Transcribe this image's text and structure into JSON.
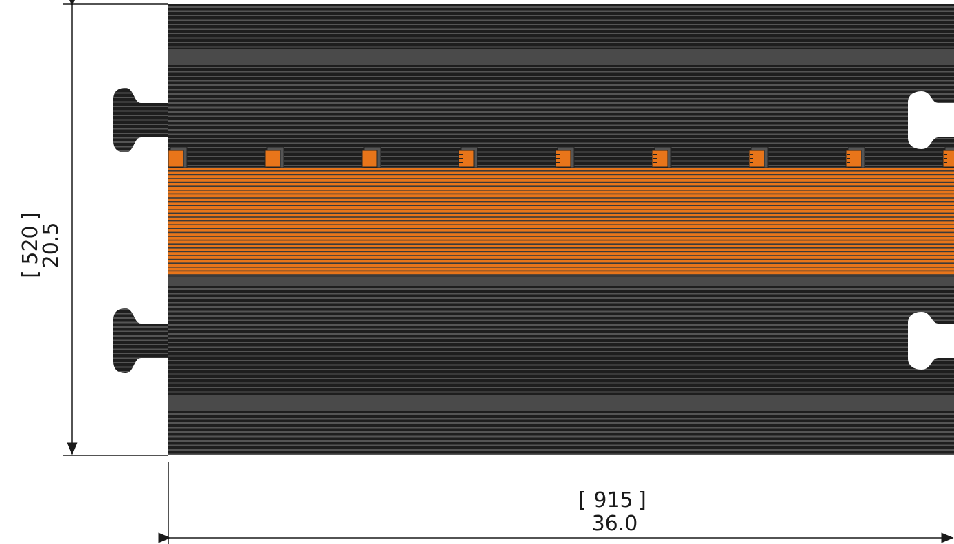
{
  "drawing": {
    "height_dim": {
      "metric": "520",
      "imperial": "20.5"
    },
    "width_dim": {
      "metric": "915",
      "imperial": "36.0"
    }
  },
  "colors": {
    "rubber_dark": "#1e1e1e",
    "rubber_band": "#4a4a4a",
    "rubber_line": "#555555",
    "channel_lid": "#e8751a",
    "channel_line": "#3a3a3a",
    "dimension_line": "#1a1a1a"
  },
  "parts": [
    "cable-protector-ramp",
    "channel-lid",
    "connector-tab",
    "hinge-knuckle",
    "connector-socket"
  ]
}
